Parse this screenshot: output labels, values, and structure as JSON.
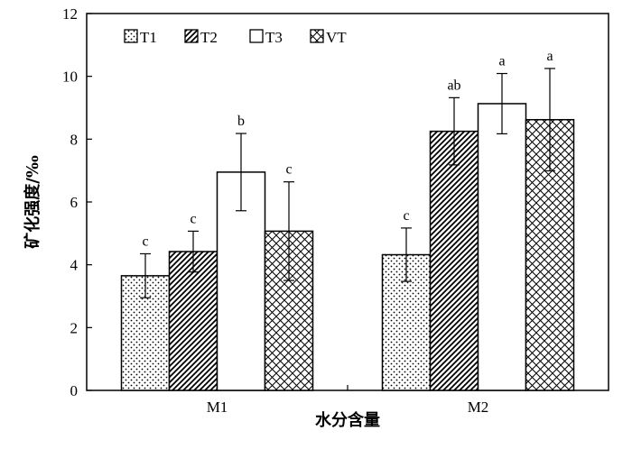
{
  "chart_data": {
    "type": "bar",
    "title": "",
    "xlabel": "水分含量",
    "ylabel": "矿化强度/‰",
    "ylim": [
      0,
      12
    ],
    "yticks": [
      0,
      2,
      4,
      6,
      8,
      10,
      12
    ],
    "categories": [
      "M1",
      "M2"
    ],
    "series": [
      {
        "name": "T1",
        "pattern": "dots",
        "values": [
          3.65,
          4.32
        ],
        "errors": [
          0.7,
          0.85
        ],
        "labels": [
          "c",
          "c"
        ]
      },
      {
        "name": "T2",
        "pattern": "diagonal",
        "values": [
          4.42,
          8.25
        ],
        "errors": [
          0.65,
          1.07
        ],
        "labels": [
          "c",
          "ab"
        ]
      },
      {
        "name": "T3",
        "pattern": "none",
        "values": [
          6.95,
          9.13
        ],
        "errors": [
          1.23,
          0.96
        ],
        "labels": [
          "b",
          "a"
        ]
      },
      {
        "name": "VT",
        "pattern": "crosshatch",
        "values": [
          5.07,
          8.62
        ],
        "errors": [
          1.57,
          1.63
        ],
        "labels": [
          "c",
          "a"
        ]
      }
    ],
    "grid": false,
    "legend": "top-left"
  }
}
